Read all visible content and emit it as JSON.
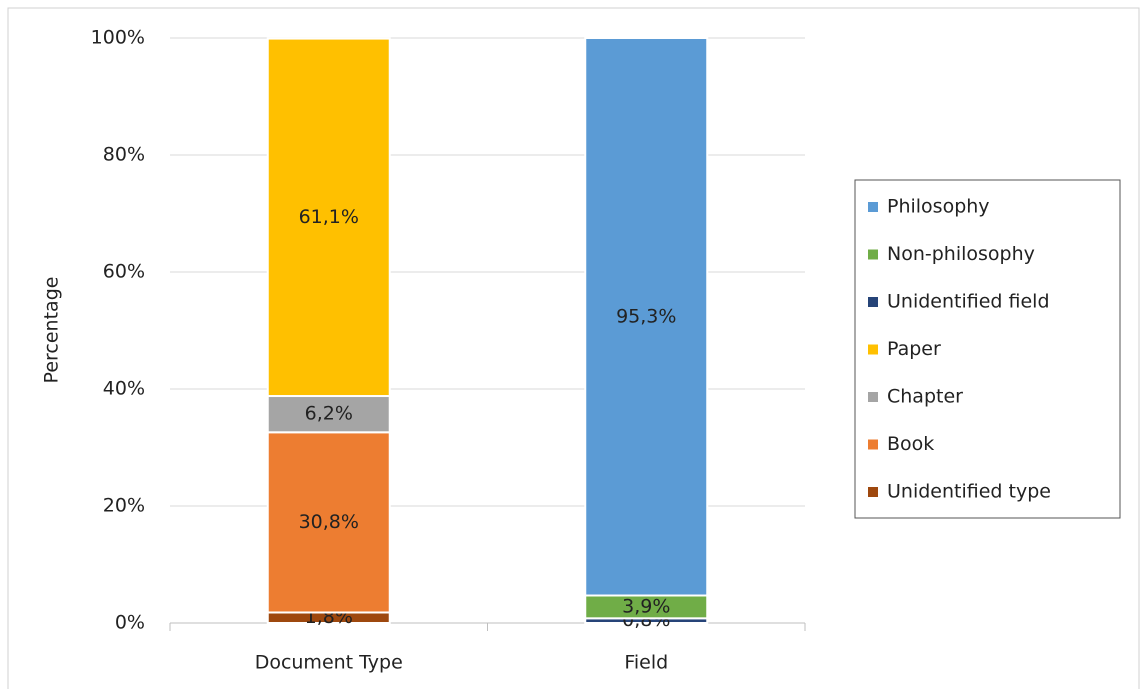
{
  "chart_data": {
    "type": "stacked_bar",
    "y_label": "Percentage",
    "categories": [
      "Document Type",
      "Field"
    ],
    "series": [
      {
        "name": "Unidentified type",
        "color": "#9e480e",
        "values": [
          1.8,
          null
        ],
        "value_labels": [
          "1,8%",
          null
        ]
      },
      {
        "name": "Book",
        "color": "#ed7d31",
        "values": [
          30.8,
          null
        ],
        "value_labels": [
          "30,8%",
          null
        ]
      },
      {
        "name": "Chapter",
        "color": "#a5a5a5",
        "values": [
          6.2,
          null
        ],
        "value_labels": [
          "6,2%",
          null
        ]
      },
      {
        "name": "Paper",
        "color": "#ffc000",
        "values": [
          61.1,
          null
        ],
        "value_labels": [
          "61,1%",
          null
        ]
      },
      {
        "name": "Unidentified field",
        "color": "#264478",
        "values": [
          null,
          0.8
        ],
        "value_labels": [
          null,
          "0,8%"
        ]
      },
      {
        "name": "Non-philosophy",
        "color": "#70ad47",
        "values": [
          null,
          3.9
        ],
        "value_labels": [
          null,
          "3,9%"
        ]
      },
      {
        "name": "Philosophy",
        "color": "#5b9bd5",
        "values": [
          null,
          95.3
        ],
        "value_labels": [
          null,
          "95,3%"
        ]
      }
    ],
    "ylim": [
      0,
      100
    ],
    "yticks": [
      {
        "value": 0,
        "label": "0%"
      },
      {
        "value": 20,
        "label": "20%"
      },
      {
        "value": 40,
        "label": "40%"
      },
      {
        "value": 60,
        "label": "60%"
      },
      {
        "value": 80,
        "label": "80%"
      },
      {
        "value": 100,
        "label": "100%"
      }
    ],
    "grid": true,
    "legend": "right"
  }
}
